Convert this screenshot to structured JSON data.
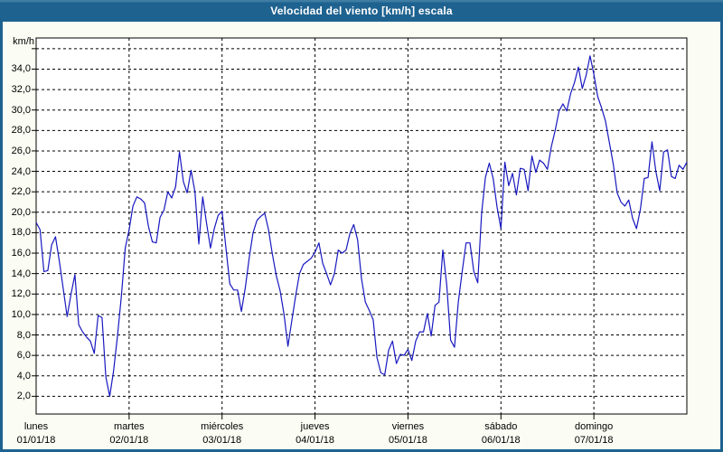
{
  "window": {
    "title": "Velocidad del viento [km/h] escala"
  },
  "chart_data": {
    "type": "line",
    "title": "Velocidad del viento [km/h] escala",
    "y_axis_unit_label": "km/h",
    "ylabel": "km/h",
    "xlabel": "",
    "ylim": [
      0,
      37
    ],
    "grid": true,
    "grid_style": "dashed-black",
    "legend_position": "none",
    "line_color": "#1818c0",
    "y_tick_values": [
      34,
      32,
      30,
      28,
      26,
      24,
      22,
      20,
      18,
      16,
      14,
      12,
      10,
      8,
      6,
      4,
      2
    ],
    "y_tick_labels": [
      "34,0",
      "32,0",
      "30,0",
      "28,0",
      "26,0",
      "24,0",
      "22,0",
      "20,0",
      "18,0",
      "16,0",
      "14,0",
      "12,0",
      "10,0",
      "8,0",
      "6,0",
      "4,0",
      "2,0"
    ],
    "y_gridline_values": [
      36,
      34,
      32,
      30,
      28,
      26,
      24,
      22,
      20,
      18,
      16,
      14,
      12,
      10,
      8,
      6,
      4,
      2
    ],
    "x_days": [
      {
        "name": "lunes",
        "date": "01/01/18"
      },
      {
        "name": "martes",
        "date": "02/01/18"
      },
      {
        "name": "miércoles",
        "date": "03/01/18"
      },
      {
        "name": "jueves",
        "date": "04/01/18"
      },
      {
        "name": "viernes",
        "date": "05/01/18"
      },
      {
        "name": "sábado",
        "date": "06/01/18"
      },
      {
        "name": "domingo",
        "date": "07/01/18"
      }
    ],
    "sampling": "hourly",
    "series": [
      {
        "name": "Velocidad del viento",
        "unit": "km/h",
        "values": [
          19.0,
          18.3,
          14.2,
          14.3,
          16.8,
          17.6,
          15.2,
          12.5,
          9.8,
          12.0,
          13.9,
          9.0,
          8.3,
          7.8,
          7.4,
          6.2,
          9.9,
          9.7,
          3.9,
          2.0,
          4.5,
          7.9,
          11.8,
          16.5,
          18.3,
          20.6,
          21.5,
          21.3,
          20.9,
          18.6,
          17.1,
          17.0,
          19.5,
          20.2,
          22.0,
          21.4,
          22.5,
          25.9,
          23.0,
          21.9,
          24.1,
          22.0,
          16.9,
          21.5,
          18.9,
          16.5,
          18.4,
          19.7,
          20.1,
          16.5,
          13.0,
          12.4,
          12.4,
          10.3,
          12.6,
          15.5,
          18.0,
          19.2,
          19.6,
          19.9,
          18.3,
          15.9,
          13.8,
          12.3,
          10.0,
          6.9,
          9.4,
          11.8,
          14.0,
          14.9,
          15.2,
          15.5,
          16.1,
          17.0,
          15.0,
          14.0,
          12.9,
          14.0,
          16.3,
          16.0,
          16.3,
          17.9,
          18.8,
          17.3,
          13.5,
          11.2,
          10.4,
          9.5,
          5.8,
          4.3,
          4.1,
          6.5,
          7.4,
          5.2,
          6.1,
          6.0,
          6.6,
          5.5,
          7.4,
          8.3,
          8.3,
          10.1,
          7.9,
          10.9,
          11.2,
          16.3,
          12.9,
          7.5,
          6.8,
          11.2,
          14.2,
          17.0,
          17.0,
          14.2,
          13.1,
          19.9,
          23.4,
          24.8,
          23.3,
          20.5,
          18.4,
          24.9,
          22.6,
          23.8,
          21.7,
          24.3,
          24.2,
          22.1,
          25.5,
          23.9,
          25.1,
          24.8,
          24.2,
          26.4,
          28.0,
          29.9,
          30.6,
          29.9,
          31.6,
          32.7,
          34.2,
          32.1,
          33.4,
          35.3,
          33.5,
          31.3,
          30.2,
          28.9,
          26.8,
          24.7,
          21.9,
          21.0,
          20.6,
          21.2,
          19.4,
          18.4,
          20.3,
          23.3,
          23.4,
          26.9,
          24.0,
          22.1,
          25.9,
          26.1,
          23.5,
          23.3,
          24.6,
          24.2,
          24.9
        ]
      }
    ]
  },
  "colors": {
    "titlebar": "#1e6290",
    "frame_border": "#1e6290",
    "background": "#fbfcf3",
    "plot_background": "#ffffff",
    "gridline": "#000000",
    "line": "#1818c0",
    "title_text": "#ffffff",
    "label_text": "#000000"
  }
}
